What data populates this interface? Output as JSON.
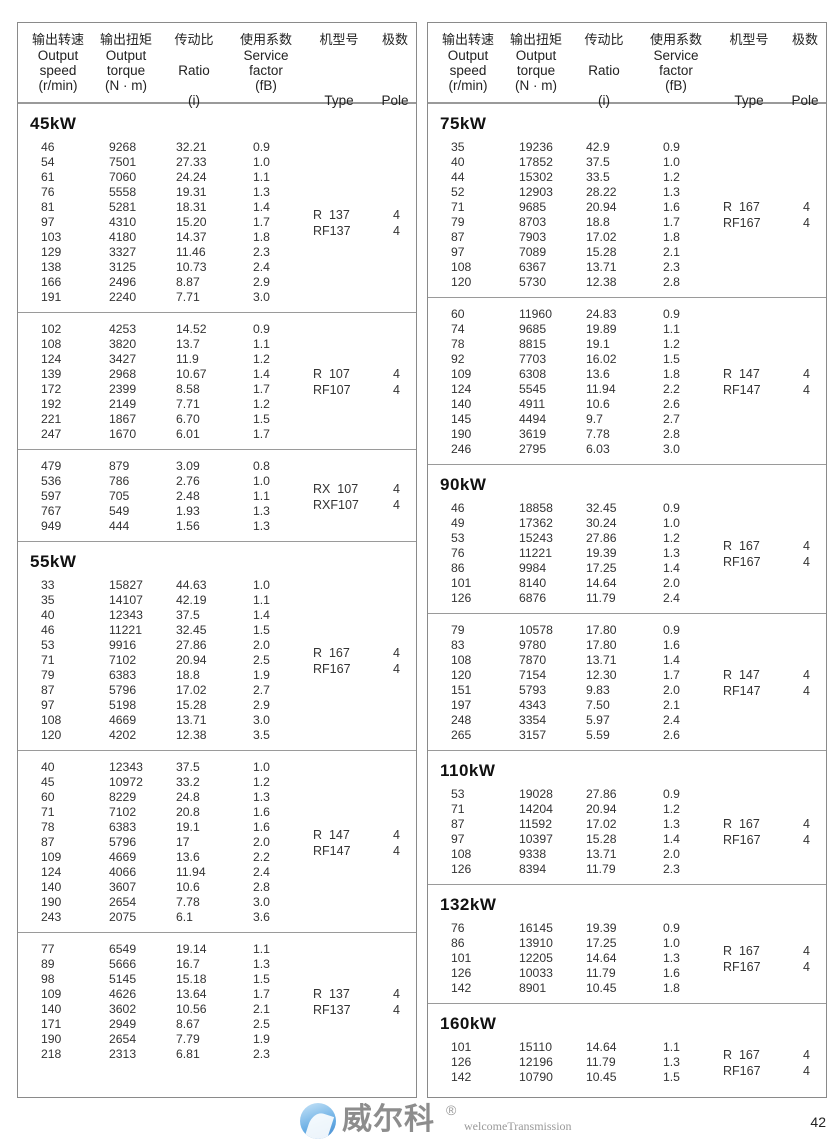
{
  "header": {
    "columns": [
      {
        "cn": "输出转速",
        "en": [
          "Output",
          "speed",
          "(r/min)"
        ]
      },
      {
        "cn": "输出扭矩",
        "en": [
          "Output",
          "torque",
          "(N · m)"
        ]
      },
      {
        "cn": "传动比",
        "en": [
          "",
          "Ratio",
          "",
          "(i)"
        ]
      },
      {
        "cn": "使用系数",
        "en": [
          "Service",
          "factor",
          "(fB)"
        ]
      },
      {
        "cn": "机型号",
        "en": [
          "",
          "",
          "",
          "Type"
        ]
      },
      {
        "cn": "极数",
        "en": [
          "",
          "",
          "",
          "Pole"
        ]
      }
    ]
  },
  "left": [
    {
      "title": "45kW",
      "type": [
        "R  137",
        "RF137"
      ],
      "pole": [
        "4",
        "4"
      ],
      "rows": [
        [
          "46",
          "9268",
          "32.21",
          "0.9"
        ],
        [
          "54",
          "7501",
          "27.33",
          "1.0"
        ],
        [
          "61",
          "7060",
          "24.24",
          "1.1"
        ],
        [
          "76",
          "5558",
          "19.31",
          "1.3"
        ],
        [
          "81",
          "5281",
          "18.31",
          "1.4"
        ],
        [
          "97",
          "4310",
          "15.20",
          "1.7"
        ],
        [
          "103",
          "4180",
          "14.37",
          "1.8"
        ],
        [
          "129",
          "3327",
          "11.46",
          "2.3"
        ],
        [
          "138",
          "3125",
          "10.73",
          "2.4"
        ],
        [
          "166",
          "2496",
          "8.87",
          "2.9"
        ],
        [
          "191",
          "2240",
          "7.71",
          "3.0"
        ]
      ]
    },
    {
      "title": "",
      "type": [
        "R  107",
        "RF107"
      ],
      "pole": [
        "4",
        "4"
      ],
      "rows": [
        [
          "102",
          "4253",
          "14.52",
          "0.9"
        ],
        [
          "108",
          "3820",
          "13.7",
          "1.1"
        ],
        [
          "124",
          "3427",
          "11.9",
          "1.2"
        ],
        [
          "139",
          "2968",
          "10.67",
          "1.4"
        ],
        [
          "172",
          "2399",
          "8.58",
          "1.7"
        ],
        [
          "192",
          "2149",
          "7.71",
          "1.2"
        ],
        [
          "221",
          "1867",
          "6.70",
          "1.5"
        ],
        [
          "247",
          "1670",
          "6.01",
          "1.7"
        ]
      ]
    },
    {
      "title": "",
      "type": [
        "RX  107",
        "RXF107"
      ],
      "pole": [
        "4",
        "4"
      ],
      "rows": [
        [
          "479",
          "879",
          "3.09",
          "0.8"
        ],
        [
          "536",
          "786",
          "2.76",
          "1.0"
        ],
        [
          "597",
          "705",
          "2.48",
          "1.1"
        ],
        [
          "767",
          "549",
          "1.93",
          "1.3"
        ],
        [
          "949",
          "444",
          "1.56",
          "1.3"
        ]
      ]
    },
    {
      "title": "55kW",
      "type": [
        "R  167",
        "RF167"
      ],
      "pole": [
        "4",
        "4"
      ],
      "rows": [
        [
          "33",
          "15827",
          "44.63",
          "1.0"
        ],
        [
          "35",
          "14107",
          "42.19",
          "1.1"
        ],
        [
          "40",
          "12343",
          "37.5",
          "1.4"
        ],
        [
          "46",
          "11221",
          "32.45",
          "1.5"
        ],
        [
          "53",
          "9916",
          "27.86",
          "2.0"
        ],
        [
          "71",
          "7102",
          "20.94",
          "2.5"
        ],
        [
          "79",
          "6383",
          "18.8",
          "1.9"
        ],
        [
          "87",
          "5796",
          "17.02",
          "2.7"
        ],
        [
          "97",
          "5198",
          "15.28",
          "2.9"
        ],
        [
          "108",
          "4669",
          "13.71",
          "3.0"
        ],
        [
          "120",
          "4202",
          "12.38",
          "3.5"
        ]
      ]
    },
    {
      "title": "",
      "type": [
        "R  147",
        "RF147"
      ],
      "pole": [
        "4",
        "4"
      ],
      "rows": [
        [
          "40",
          "12343",
          "37.5",
          "1.0"
        ],
        [
          "45",
          "10972",
          "33.2",
          "1.2"
        ],
        [
          "60",
          "8229",
          "24.8",
          "1.3"
        ],
        [
          "71",
          "7102",
          "20.8",
          "1.6"
        ],
        [
          "78",
          "6383",
          "19.1",
          "1.6"
        ],
        [
          "87",
          "5796",
          "17",
          "2.0"
        ],
        [
          "109",
          "4669",
          "13.6",
          "2.2"
        ],
        [
          "124",
          "4066",
          "11.94",
          "2.4"
        ],
        [
          "140",
          "3607",
          "10.6",
          "2.8"
        ],
        [
          "190",
          "2654",
          "7.78",
          "3.0"
        ],
        [
          "243",
          "2075",
          "6.1",
          "3.6"
        ]
      ]
    },
    {
      "title": "",
      "type": [
        "R  137",
        "RF137"
      ],
      "pole": [
        "4",
        "4"
      ],
      "rows": [
        [
          "77",
          "6549",
          "19.14",
          "1.1"
        ],
        [
          "89",
          "5666",
          "16.7",
          "1.3"
        ],
        [
          "98",
          "5145",
          "15.18",
          "1.5"
        ],
        [
          "109",
          "4626",
          "13.64",
          "1.7"
        ],
        [
          "140",
          "3602",
          "10.56",
          "2.1"
        ],
        [
          "171",
          "2949",
          "8.67",
          "2.5"
        ],
        [
          "190",
          "2654",
          "7.79",
          "1.9"
        ],
        [
          "218",
          "2313",
          "6.81",
          "2.3"
        ]
      ]
    }
  ],
  "right": [
    {
      "title": "75kW",
      "type": [
        "R  167",
        "RF167"
      ],
      "pole": [
        "4",
        "4"
      ],
      "rows": [
        [
          "35",
          "19236",
          "42.9",
          "0.9"
        ],
        [
          "40",
          "17852",
          "37.5",
          "1.0"
        ],
        [
          "44",
          "15302",
          "33.5",
          "1.2"
        ],
        [
          "52",
          "12903",
          "28.22",
          "1.3"
        ],
        [
          "71",
          "9685",
          "20.94",
          "1.6"
        ],
        [
          "79",
          "8703",
          "18.8",
          "1.7"
        ],
        [
          "87",
          "7903",
          "17.02",
          "1.8"
        ],
        [
          "97",
          "7089",
          "15.28",
          "2.1"
        ],
        [
          "108",
          "6367",
          "13.71",
          "2.3"
        ],
        [
          "120",
          "5730",
          "12.38",
          "2.8"
        ]
      ]
    },
    {
      "title": "",
      "type": [
        "R  147",
        "RF147"
      ],
      "pole": [
        "4",
        "4"
      ],
      "rows": [
        [
          "60",
          "11960",
          "24.83",
          "0.9"
        ],
        [
          "74",
          "9685",
          "19.89",
          "1.1"
        ],
        [
          "78",
          "8815",
          "19.1",
          "1.2"
        ],
        [
          "92",
          "7703",
          "16.02",
          "1.5"
        ],
        [
          "109",
          "6308",
          "13.6",
          "1.8"
        ],
        [
          "124",
          "5545",
          "11.94",
          "2.2"
        ],
        [
          "140",
          "4911",
          "10.6",
          "2.6"
        ],
        [
          "145",
          "4494",
          "9.7",
          "2.7"
        ],
        [
          "190",
          "3619",
          "7.78",
          "2.8"
        ],
        [
          "246",
          "2795",
          "6.03",
          "3.0"
        ]
      ]
    },
    {
      "title": "90kW",
      "type": [
        "R  167",
        "RF167"
      ],
      "pole": [
        "4",
        "4"
      ],
      "rows": [
        [
          "46",
          "18858",
          "32.45",
          "0.9"
        ],
        [
          "49",
          "17362",
          "30.24",
          "1.0"
        ],
        [
          "53",
          "15243",
          "27.86",
          "1.2"
        ],
        [
          "76",
          "11221",
          "19.39",
          "1.3"
        ],
        [
          "86",
          "9984",
          "17.25",
          "1.4"
        ],
        [
          "101",
          "8140",
          "14.64",
          "2.0"
        ],
        [
          "126",
          "6876",
          "11.79",
          "2.4"
        ]
      ]
    },
    {
      "title": "",
      "type": [
        "R  147",
        "RF147"
      ],
      "pole": [
        "4",
        "4"
      ],
      "rows": [
        [
          "79",
          "10578",
          "17.80",
          "0.9"
        ],
        [
          "83",
          "9780",
          "17.80",
          "1.6"
        ],
        [
          "108",
          "7870",
          "13.71",
          "1.4"
        ],
        [
          "120",
          "7154",
          "12.30",
          "1.7"
        ],
        [
          "151",
          "5793",
          "9.83",
          "2.0"
        ],
        [
          "197",
          "4343",
          "7.50",
          "2.1"
        ],
        [
          "248",
          "3354",
          "5.97",
          "2.4"
        ],
        [
          "265",
          "3157",
          "5.59",
          "2.6"
        ]
      ]
    },
    {
      "title": "110kW",
      "type": [
        "R  167",
        "RF167"
      ],
      "pole": [
        "4",
        "4"
      ],
      "rows": [
        [
          "53",
          "19028",
          "27.86",
          "0.9"
        ],
        [
          "71",
          "14204",
          "20.94",
          "1.2"
        ],
        [
          "87",
          "11592",
          "17.02",
          "1.3"
        ],
        [
          "97",
          "10397",
          "15.28",
          "1.4"
        ],
        [
          "108",
          "9338",
          "13.71",
          "2.0"
        ],
        [
          "126",
          "8394",
          "11.79",
          "2.3"
        ]
      ]
    },
    {
      "title": "132kW",
      "type": [
        "R  167",
        "RF167"
      ],
      "pole": [
        "4",
        "4"
      ],
      "rows": [
        [
          "76",
          "16145",
          "19.39",
          "0.9"
        ],
        [
          "86",
          "13910",
          "17.25",
          "1.0"
        ],
        [
          "101",
          "12205",
          "14.64",
          "1.3"
        ],
        [
          "126",
          "10033",
          "11.79",
          "1.6"
        ],
        [
          "142",
          "8901",
          "10.45",
          "1.8"
        ]
      ]
    },
    {
      "title": "160kW",
      "type": [
        "R  167",
        "RF167"
      ],
      "pole": [
        "4",
        "4"
      ],
      "rows": [
        [
          "101",
          "15110",
          "14.64",
          "1.1"
        ],
        [
          "126",
          "12196",
          "11.79",
          "1.3"
        ],
        [
          "142",
          "10790",
          "10.45",
          "1.5"
        ]
      ]
    }
  ],
  "watermark": {
    "cn": "威尔科",
    "en": "welcomeTransmission",
    "reg": "®",
    "colors": {
      "blue": "#4d9fe0",
      "gray": "#7a7a7a"
    }
  },
  "page_number": "42"
}
